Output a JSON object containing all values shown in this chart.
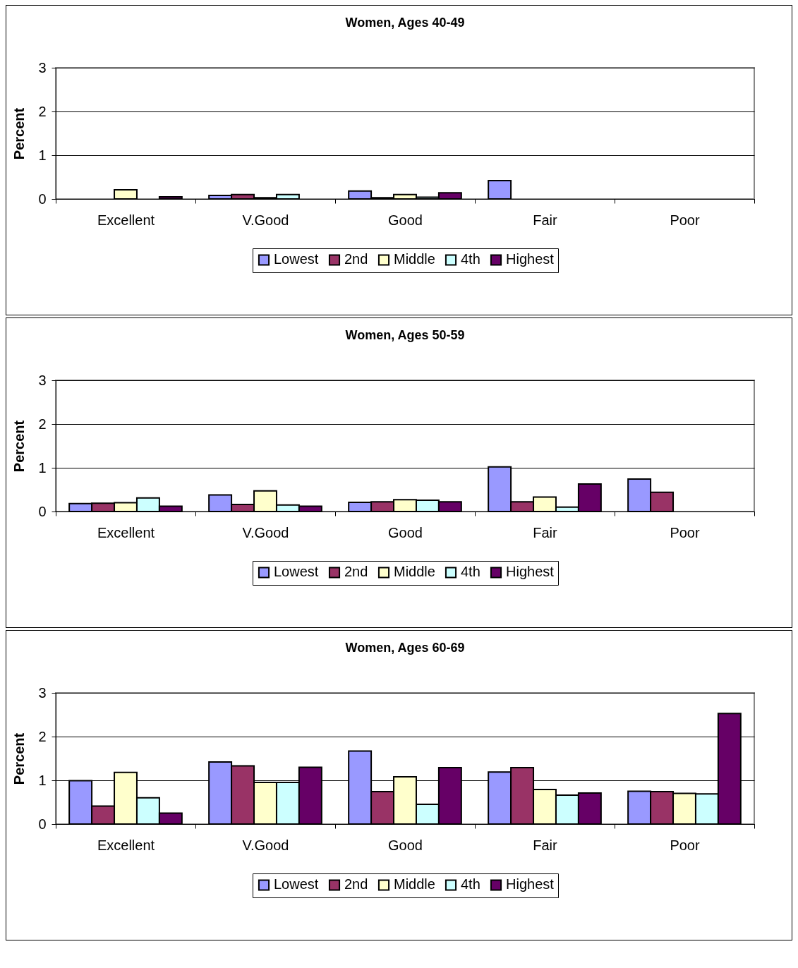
{
  "chart_data": [
    {
      "type": "bar",
      "title": "Women, Ages 40-49",
      "ylabel": "Percent",
      "categories": [
        "Excellent",
        "V.Good",
        "Good",
        "Fair",
        "Poor"
      ],
      "ylim": [
        0,
        3
      ],
      "yticks": [
        0,
        1,
        2,
        3
      ],
      "grid": "y",
      "legend": "bottom",
      "series": [
        {
          "name": "Lowest",
          "color": "#9999ff",
          "values": [
            null,
            0.08,
            0.18,
            0.42,
            null
          ]
        },
        {
          "name": "2nd",
          "color": "#993366",
          "values": [
            null,
            0.1,
            0.03,
            null,
            null
          ]
        },
        {
          "name": "Middle",
          "color": "#ffffcc",
          "values": [
            0.21,
            0.03,
            0.1,
            null,
            null
          ]
        },
        {
          "name": "4th",
          "color": "#ccffff",
          "values": [
            null,
            0.1,
            0.04,
            null,
            null
          ]
        },
        {
          "name": "Highest",
          "color": "#660066",
          "values": [
            0.05,
            null,
            0.14,
            null,
            null
          ]
        }
      ]
    },
    {
      "type": "bar",
      "title": "Women, Ages 50-59",
      "ylabel": "Percent",
      "categories": [
        "Excellent",
        "V.Good",
        "Good",
        "Fair",
        "Poor"
      ],
      "ylim": [
        0,
        3
      ],
      "yticks": [
        0,
        1,
        2,
        3
      ],
      "grid": "y",
      "legend": "bottom",
      "series": [
        {
          "name": "Lowest",
          "color": "#9999ff",
          "values": [
            0.18,
            0.38,
            0.21,
            1.02,
            0.74
          ]
        },
        {
          "name": "2nd",
          "color": "#993366",
          "values": [
            0.19,
            0.16,
            0.22,
            0.22,
            0.44
          ]
        },
        {
          "name": "Middle",
          "color": "#ffffcc",
          "values": [
            0.2,
            0.47,
            0.27,
            0.33,
            null
          ]
        },
        {
          "name": "4th",
          "color": "#ccffff",
          "values": [
            0.31,
            0.15,
            0.26,
            0.1,
            null
          ]
        },
        {
          "name": "Highest",
          "color": "#660066",
          "values": [
            0.12,
            0.12,
            0.22,
            0.63,
            null
          ]
        }
      ]
    },
    {
      "type": "bar",
      "title": "Women, Ages 60-69",
      "ylabel": "Percent",
      "categories": [
        "Excellent",
        "V.Good",
        "Good",
        "Fair",
        "Poor"
      ],
      "ylim": [
        0,
        3
      ],
      "yticks": [
        0,
        1,
        2,
        3
      ],
      "grid": "y",
      "legend": "bottom",
      "series": [
        {
          "name": "Lowest",
          "color": "#9999ff",
          "values": [
            0.99,
            1.42,
            1.67,
            1.19,
            0.75
          ]
        },
        {
          "name": "2nd",
          "color": "#993366",
          "values": [
            0.41,
            1.33,
            0.74,
            1.29,
            0.74
          ]
        },
        {
          "name": "Middle",
          "color": "#ffffcc",
          "values": [
            1.18,
            0.95,
            1.08,
            0.79,
            0.7
          ]
        },
        {
          "name": "4th",
          "color": "#ccffff",
          "values": [
            0.6,
            0.95,
            0.45,
            0.66,
            0.69
          ]
        },
        {
          "name": "Highest",
          "color": "#660066",
          "values": [
            0.25,
            1.3,
            1.29,
            0.71,
            2.53
          ]
        }
      ]
    }
  ]
}
